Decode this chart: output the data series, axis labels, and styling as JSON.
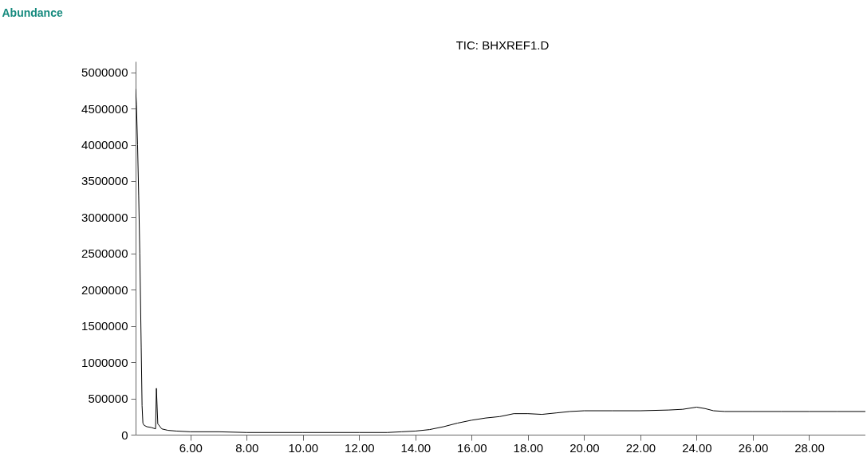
{
  "chart_data": {
    "type": "line",
    "title": "TIC: BHXREF1.D",
    "ylabel": "Abundance",
    "x": [
      4.05,
      4.08,
      4.12,
      4.16,
      4.2,
      4.25,
      4.28,
      4.31,
      4.35,
      4.45,
      4.6,
      4.76,
      4.79,
      4.84,
      4.98,
      5.2,
      5.5,
      6.0,
      7.0,
      8.0,
      10.0,
      12.0,
      13.0,
      13.5,
      14.0,
      14.5,
      15.0,
      15.5,
      16.0,
      16.5,
      17.0,
      17.5,
      18.0,
      18.5,
      19.0,
      19.5,
      20.0,
      21.0,
      22.0,
      23.0,
      23.5,
      24.0,
      24.3,
      24.6,
      25.0,
      26.0,
      27.0,
      28.0,
      29.0,
      30.0
    ],
    "series": [
      {
        "color": "#000000",
        "values": [
          4770000,
          4550000,
          4000000,
          3300000,
          2500000,
          1200000,
          400000,
          160000,
          130000,
          110000,
          100000,
          80000,
          640000,
          150000,
          80000,
          60000,
          50000,
          40000,
          40000,
          30000,
          30000,
          30000,
          30000,
          40000,
          50000,
          70000,
          110000,
          160000,
          200000,
          230000,
          250000,
          290000,
          290000,
          280000,
          300000,
          320000,
          330000,
          330000,
          330000,
          340000,
          350000,
          380000,
          360000,
          330000,
          320000,
          320000,
          320000,
          320000,
          320000,
          320000
        ]
      }
    ],
    "xlim": [
      4.05,
      30
    ],
    "ylim": [
      0,
      5150000
    ],
    "xticks": [
      {
        "value": 6,
        "label": "6.00"
      },
      {
        "value": 8,
        "label": "8.00"
      },
      {
        "value": 10,
        "label": "10.00"
      },
      {
        "value": 12,
        "label": "12.00"
      },
      {
        "value": 14,
        "label": "14.00"
      },
      {
        "value": 16,
        "label": "16.00"
      },
      {
        "value": 18,
        "label": "18.00"
      },
      {
        "value": 20,
        "label": "20.00"
      },
      {
        "value": 22,
        "label": "22.00"
      },
      {
        "value": 24,
        "label": "24.00"
      },
      {
        "value": 26,
        "label": "26.00"
      },
      {
        "value": 28,
        "label": "28.00"
      }
    ],
    "yticks": [
      0,
      500000,
      1000000,
      1500000,
      2000000,
      2500000,
      3000000,
      3500000,
      4000000,
      4500000,
      5000000
    ],
    "grid": false,
    "marker": "none",
    "line_style": "solid"
  }
}
